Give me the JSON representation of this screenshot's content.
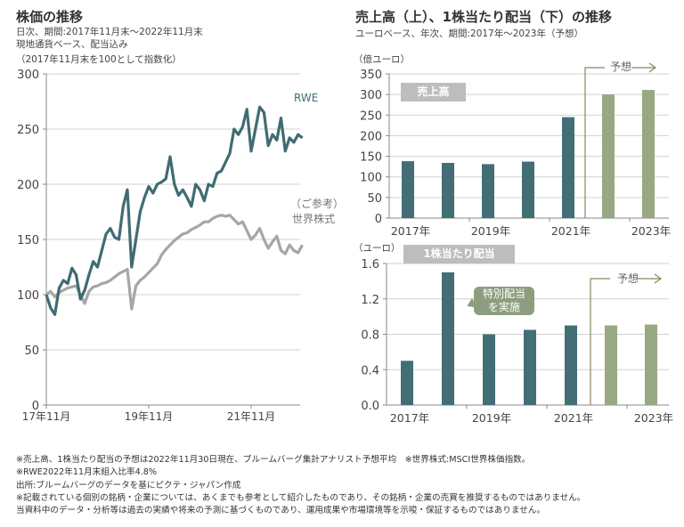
{
  "left_panel": {
    "title": "株価の推移",
    "subtitle_1": "日次、期間:2017年11月末～2022年11月末",
    "subtitle_2": "現地通貨ベース、配当込み",
    "subtitle_3": "（2017年11月末を100として指数化）"
  },
  "right_panel": {
    "title": "売上高（上）、1株当たり配当（下）の推移",
    "subtitle": "ユーロベース、年次、期間:2017年～2023年（予想）"
  },
  "colors": {
    "rwe": "#3f6c73",
    "world": "#a6a6a6",
    "actual_bar": "#436e75",
    "forecast_bar": "#97a882",
    "forecast_line": "#8b8560",
    "grid": "#d0d0d0",
    "axis": "#888888",
    "label_box": "#bdbdbd",
    "callout": "#8d9e7e"
  },
  "chart_data": [
    {
      "type": "line",
      "title": "株価の推移",
      "xlabel": "",
      "ylabel": "",
      "ylim": [
        0,
        300
      ],
      "yticks": [
        "0",
        "50",
        "100",
        "150",
        "200",
        "250",
        "300"
      ],
      "xticks": [
        "17年11月",
        "19年11月",
        "21年11月"
      ],
      "x_range_months": [
        0,
        60
      ],
      "grid": true,
      "series": [
        {
          "name": "RWE",
          "label": "RWE",
          "x": [
            0,
            1,
            2,
            3,
            4,
            5,
            6,
            7,
            8,
            9,
            10,
            11,
            12,
            13,
            14,
            15,
            16,
            17,
            18,
            19,
            20,
            21,
            22,
            23,
            24,
            25,
            26,
            27,
            28,
            29,
            30,
            31,
            32,
            33,
            34,
            35,
            36,
            37,
            38,
            39,
            40,
            41,
            42,
            43,
            44,
            45,
            46,
            47,
            48,
            49,
            50,
            51,
            52,
            53,
            54,
            55,
            56,
            57,
            58,
            59,
            60
          ],
          "values": [
            100,
            88,
            82,
            106,
            113,
            110,
            124,
            118,
            96,
            104,
            118,
            130,
            125,
            140,
            155,
            160,
            152,
            150,
            180,
            195,
            125,
            150,
            175,
            188,
            198,
            192,
            200,
            202,
            205,
            225,
            200,
            190,
            195,
            188,
            180,
            200,
            195,
            185,
            200,
            198,
            210,
            212,
            220,
            228,
            250,
            245,
            252,
            268,
            230,
            250,
            270,
            265,
            235,
            245,
            240,
            260,
            230,
            242,
            238,
            245,
            242
          ]
        },
        {
          "name": "世界株式",
          "label_1": "（ご参考）",
          "label_2": "世界株式",
          "x": [
            0,
            1,
            2,
            3,
            4,
            5,
            6,
            7,
            8,
            9,
            10,
            11,
            12,
            13,
            14,
            15,
            16,
            17,
            18,
            19,
            20,
            21,
            22,
            23,
            24,
            25,
            26,
            27,
            28,
            29,
            30,
            31,
            32,
            33,
            34,
            35,
            36,
            37,
            38,
            39,
            40,
            41,
            42,
            43,
            44,
            45,
            46,
            47,
            48,
            49,
            50,
            51,
            52,
            53,
            54,
            55,
            56,
            57,
            58,
            59,
            60
          ],
          "values": [
            100,
            103,
            98,
            102,
            104,
            106,
            107,
            108,
            100,
            92,
            103,
            107,
            108,
            110,
            111,
            113,
            116,
            119,
            121,
            123,
            87,
            108,
            113,
            116,
            120,
            124,
            128,
            136,
            141,
            145,
            149,
            152,
            155,
            156,
            159,
            161,
            163,
            166,
            166,
            169,
            171,
            172,
            171,
            172,
            168,
            164,
            166,
            158,
            150,
            154,
            160,
            150,
            142,
            148,
            153,
            140,
            137,
            145,
            140,
            138,
            145
          ]
        }
      ]
    },
    {
      "type": "bar",
      "title": "売上高",
      "unit_label": "（億ユーロ）",
      "categories": [
        "2017年",
        "2018年",
        "2019年",
        "2020年",
        "2021年",
        "2022年",
        "2023年"
      ],
      "xtick_labels": [
        "2017年",
        "2019年",
        "2021年",
        "2023年"
      ],
      "values": [
        138,
        134,
        131,
        137,
        245,
        300,
        311
      ],
      "forecast": [
        false,
        false,
        false,
        false,
        false,
        true,
        true
      ],
      "ylim": [
        0,
        350
      ],
      "yticks": [
        "0",
        "50",
        "100",
        "150",
        "200",
        "250",
        "300",
        "350"
      ],
      "forecast_label": "予想"
    },
    {
      "type": "bar",
      "title": "1株当たり配当",
      "unit_label": "（ユーロ）",
      "categories": [
        "2017年",
        "2018年",
        "2019年",
        "2020年",
        "2021年",
        "2022年",
        "2023年"
      ],
      "xtick_labels": [
        "2017年",
        "2019年",
        "2021年",
        "2023年"
      ],
      "values": [
        0.5,
        1.5,
        0.8,
        0.85,
        0.9,
        0.9,
        0.91
      ],
      "forecast": [
        false,
        false,
        false,
        false,
        false,
        true,
        true
      ],
      "ylim": [
        0,
        1.6
      ],
      "yticks": [
        "0.0",
        "0.4",
        "0.8",
        "1.2",
        "1.6"
      ],
      "forecast_label": "予想",
      "annotation_1": "特別配当",
      "annotation_2": "を実施"
    }
  ],
  "footnotes": [
    "※売上高、1株当たり配当の予想は2022年11月30日現在、ブルームバーグ集計アナリスト予想平均　※世界株式:MSCI世界株価指数。",
    "※RWE2022年11月末組入比率4.8%",
    "出所:ブルームバーグのデータを基にピクテ・ジャパン作成",
    "※記載されている個別の銘柄・企業については、あくまでも参考として紹介したものであり、その銘柄・企業の売買を推奨するものではありません。",
    "当資料中のデータ・分析等は過去の実績や将来の予測に基づくものであり、運用成果や市場環境等を示唆・保証するものではありません。"
  ]
}
